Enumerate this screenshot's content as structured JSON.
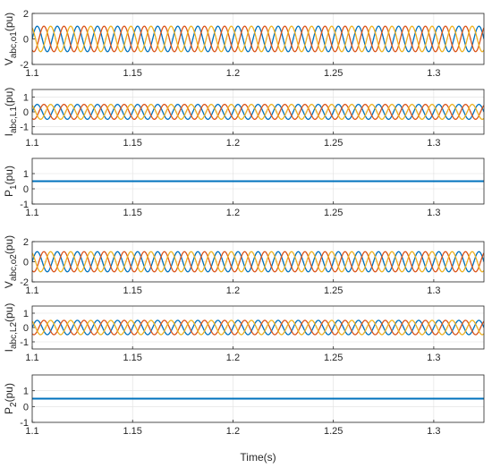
{
  "colors": {
    "phase_a": "#D95319",
    "phase_b": "#0072BD",
    "phase_c": "#EDB120",
    "power": "#0072BD"
  },
  "chart_data": {
    "type": "line",
    "shared_x": {
      "range": [
        1.1,
        1.325
      ],
      "ticks": [
        1.1,
        1.15,
        1.2,
        1.25,
        1.3
      ],
      "tick_labels": [
        "1.1",
        "1.15",
        "1.2",
        "1.25",
        "1.3"
      ]
    },
    "xlabel": "Time(s)",
    "grid": true,
    "subplots": [
      {
        "id": "vabc-o1",
        "ylabel": {
          "base": "V",
          "sub": "abc,o1",
          "unit": "(pu)"
        },
        "ylim": [
          -2,
          2
        ],
        "yticks": [
          -2,
          0,
          2
        ],
        "ytick_labels": [
          "-2",
          "0",
          "2"
        ],
        "kind": "three-phase",
        "frequency_hz": 100,
        "amplitude": 1,
        "series": [
          {
            "phase_deg": 0,
            "color": "#0072BD"
          },
          {
            "phase_deg": -120,
            "color": "#D95319"
          },
          {
            "phase_deg": 120,
            "color": "#EDB120"
          }
        ]
      },
      {
        "id": "iabc-l1",
        "ylabel": {
          "base": "I",
          "sub": "abc,L1",
          "unit": "(pu)"
        },
        "ylim": [
          -1.5,
          1.5
        ],
        "yticks": [
          -1,
          0,
          1
        ],
        "ytick_labels": [
          "-1",
          "0",
          "1"
        ],
        "kind": "three-phase",
        "frequency_hz": 100,
        "amplitude": 0.5,
        "series": [
          {
            "phase_deg": 0,
            "color": "#0072BD"
          },
          {
            "phase_deg": -120,
            "color": "#D95319"
          },
          {
            "phase_deg": 120,
            "color": "#EDB120"
          }
        ]
      },
      {
        "id": "p1",
        "ylabel": {
          "base": "P",
          "sub": "1",
          "unit": "(pu)"
        },
        "ylim": [
          -1,
          2
        ],
        "yticks": [
          -1,
          0,
          1
        ],
        "ytick_labels": [
          "-1",
          "0",
          "1"
        ],
        "kind": "constant",
        "value": 0.5,
        "series": [
          {
            "color": "#0072BD"
          }
        ]
      },
      {
        "id": "vabc-o2",
        "ylabel": {
          "base": "V",
          "sub": "abc,o2",
          "unit": "(pu)"
        },
        "ylim": [
          -2,
          2
        ],
        "yticks": [
          -2,
          0,
          2
        ],
        "ytick_labels": [
          "-2",
          "0",
          "2"
        ],
        "kind": "three-phase",
        "frequency_hz": 100,
        "amplitude": 1,
        "series": [
          {
            "phase_deg": 0,
            "color": "#0072BD"
          },
          {
            "phase_deg": -120,
            "color": "#D95319"
          },
          {
            "phase_deg": 120,
            "color": "#EDB120"
          }
        ]
      },
      {
        "id": "iabc-l2",
        "ylabel": {
          "base": "I",
          "sub": "abc,L2",
          "unit": "(pu)"
        },
        "ylim": [
          -1.5,
          1.5
        ],
        "yticks": [
          -1,
          0,
          1
        ],
        "ytick_labels": [
          "-1",
          "0",
          "1"
        ],
        "kind": "three-phase",
        "frequency_hz": 100,
        "amplitude": 0.5,
        "series": [
          {
            "phase_deg": 0,
            "color": "#0072BD"
          },
          {
            "phase_deg": -120,
            "color": "#D95319"
          },
          {
            "phase_deg": 120,
            "color": "#EDB120"
          }
        ]
      },
      {
        "id": "p2",
        "ylabel": {
          "base": "P",
          "sub": "2",
          "unit": "(pu)"
        },
        "ylim": [
          -1,
          2
        ],
        "yticks": [
          -1,
          0,
          1
        ],
        "ytick_labels": [
          "-1",
          "0",
          "1"
        ],
        "kind": "constant",
        "value": 0.5,
        "series": [
          {
            "color": "#0072BD"
          }
        ]
      }
    ]
  }
}
